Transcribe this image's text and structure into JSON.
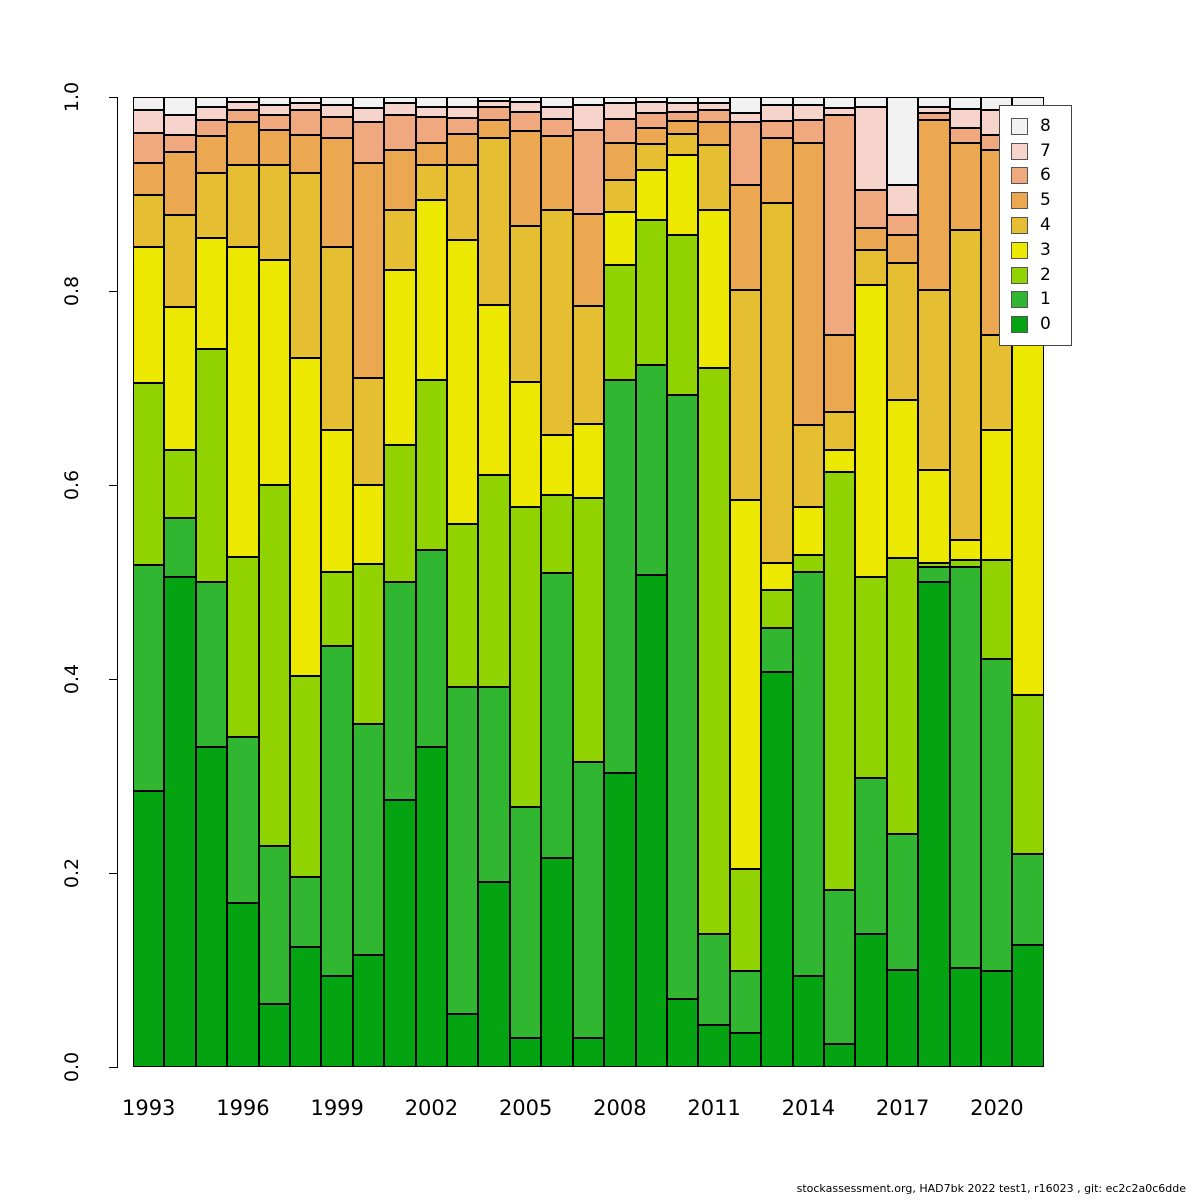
{
  "footer": {
    "text": "stockassessment.org, HAD7bk  2022  test1, r16023 , git: ec2c2a0c6dde"
  },
  "y_axis": {
    "ticks": [
      "0.0",
      "0.2",
      "0.4",
      "0.6",
      "0.8",
      "1.0"
    ]
  },
  "x_axis": {
    "labels": [
      "1993",
      "1996",
      "1999",
      "2002",
      "2005",
      "2008",
      "2011",
      "2014",
      "2017",
      "2020"
    ],
    "label_year_indices": [
      0,
      3,
      6,
      9,
      12,
      15,
      18,
      21,
      24,
      27
    ]
  },
  "legend": {
    "entries": [
      {
        "label": "8",
        "color": "#f2f2f2"
      },
      {
        "label": "7",
        "color": "#f6d4cc"
      },
      {
        "label": "6",
        "color": "#f0a97e"
      },
      {
        "label": "5",
        "color": "#eba851"
      },
      {
        "label": "4",
        "color": "#e5bf31"
      },
      {
        "label": "3",
        "color": "#ece800"
      },
      {
        "label": "2",
        "color": "#90d300"
      },
      {
        "label": "1",
        "color": "#30b630"
      },
      {
        "label": "0",
        "color": "#04a312"
      }
    ]
  },
  "chart_data": {
    "type": "bar",
    "variant": "stacked-proportional",
    "title": "",
    "xlabel": "",
    "ylabel": "",
    "ylim": [
      0,
      1
    ],
    "grid": false,
    "legend_position": "top-right-overlay",
    "years": [
      1993,
      1994,
      1995,
      1996,
      1997,
      1998,
      1999,
      2000,
      2001,
      2002,
      2003,
      2004,
      2005,
      2006,
      2007,
      2008,
      2009,
      2010,
      2011,
      2012,
      2013,
      2014,
      2015,
      2016,
      2017,
      2018,
      2019,
      2020,
      2021
    ],
    "age_classes": [
      "0",
      "1",
      "2",
      "3",
      "4",
      "5",
      "6",
      "7",
      "8"
    ],
    "series": [
      {
        "name": "0",
        "color": "#04a312",
        "values": [
          0.284,
          0.505,
          0.33,
          0.169,
          0.065,
          0.124,
          0.094,
          0.115,
          0.275,
          0.33,
          0.055,
          0.191,
          0.03,
          0.215,
          0.03,
          0.303,
          0.507,
          0.07,
          0.043,
          0.035,
          0.407,
          0.094,
          0.024,
          0.137,
          0.1,
          0.5,
          0.102,
          0.099,
          0.126
        ]
      },
      {
        "name": "1",
        "color": "#30b630",
        "values": [
          0.233,
          0.061,
          0.17,
          0.171,
          0.163,
          0.072,
          0.34,
          0.239,
          0.225,
          0.203,
          0.337,
          0.201,
          0.238,
          0.294,
          0.284,
          0.405,
          0.217,
          0.623,
          0.094,
          0.064,
          0.046,
          0.416,
          0.158,
          0.161,
          0.14,
          0.015,
          0.413,
          0.322,
          0.094
        ]
      },
      {
        "name": "2",
        "color": "#90d300",
        "values": [
          0.188,
          0.07,
          0.24,
          0.186,
          0.372,
          0.207,
          0.076,
          0.164,
          0.141,
          0.175,
          0.168,
          0.218,
          0.309,
          0.081,
          0.273,
          0.119,
          0.149,
          0.165,
          0.584,
          0.105,
          0.039,
          0.018,
          0.431,
          0.207,
          0.285,
          0.005,
          0.008,
          0.102,
          0.164
        ]
      },
      {
        "name": "3",
        "color": "#ece800",
        "values": [
          0.14,
          0.147,
          0.115,
          0.319,
          0.232,
          0.328,
          0.147,
          0.082,
          0.181,
          0.186,
          0.293,
          0.176,
          0.129,
          0.062,
          0.076,
          0.054,
          0.052,
          0.082,
          0.162,
          0.38,
          0.028,
          0.049,
          0.023,
          0.301,
          0.163,
          0.095,
          0.02,
          0.134,
          0.416
        ]
      },
      {
        "name": "4",
        "color": "#e5bf31",
        "values": [
          0.054,
          0.095,
          0.067,
          0.085,
          0.098,
          0.191,
          0.188,
          0.11,
          0.061,
          0.036,
          0.077,
          0.172,
          0.161,
          0.231,
          0.121,
          0.033,
          0.027,
          0.022,
          0.067,
          0.217,
          0.371,
          0.085,
          0.039,
          0.036,
          0.141,
          0.186,
          0.32,
          0.098,
          0.08
        ]
      },
      {
        "name": "5",
        "color": "#eba851",
        "values": [
          0.033,
          0.065,
          0.038,
          0.044,
          0.036,
          0.039,
          0.113,
          0.222,
          0.062,
          0.023,
          0.032,
          0.018,
          0.098,
          0.077,
          0.095,
          0.039,
          0.016,
          0.013,
          0.024,
          0.108,
          0.067,
          0.291,
          0.08,
          0.023,
          0.029,
          0.175,
          0.09,
          0.19,
          0.065
        ]
      },
      {
        "name": "6",
        "color": "#f0a97e",
        "values": [
          0.031,
          0.018,
          0.016,
          0.013,
          0.015,
          0.026,
          0.021,
          0.042,
          0.036,
          0.026,
          0.016,
          0.014,
          0.02,
          0.017,
          0.087,
          0.024,
          0.016,
          0.01,
          0.013,
          0.065,
          0.017,
          0.023,
          0.226,
          0.039,
          0.02,
          0.007,
          0.015,
          0.016,
          0.025
        ]
      },
      {
        "name": "7",
        "color": "#f6d4cc",
        "values": [
          0.024,
          0.02,
          0.014,
          0.008,
          0.011,
          0.007,
          0.013,
          0.015,
          0.013,
          0.011,
          0.012,
          0.006,
          0.01,
          0.013,
          0.026,
          0.017,
          0.011,
          0.009,
          0.007,
          0.01,
          0.017,
          0.016,
          0.008,
          0.086,
          0.031,
          0.007,
          0.02,
          0.026,
          0.015
        ]
      },
      {
        "name": "8",
        "color": "#f2f2f2",
        "values": [
          0.013,
          0.019,
          0.01,
          0.005,
          0.008,
          0.006,
          0.008,
          0.011,
          0.006,
          0.01,
          0.01,
          0.004,
          0.005,
          0.01,
          0.008,
          0.006,
          0.005,
          0.006,
          0.006,
          0.016,
          0.008,
          0.008,
          0.011,
          0.01,
          0.091,
          0.01,
          0.012,
          0.013,
          0.015
        ]
      }
    ]
  }
}
